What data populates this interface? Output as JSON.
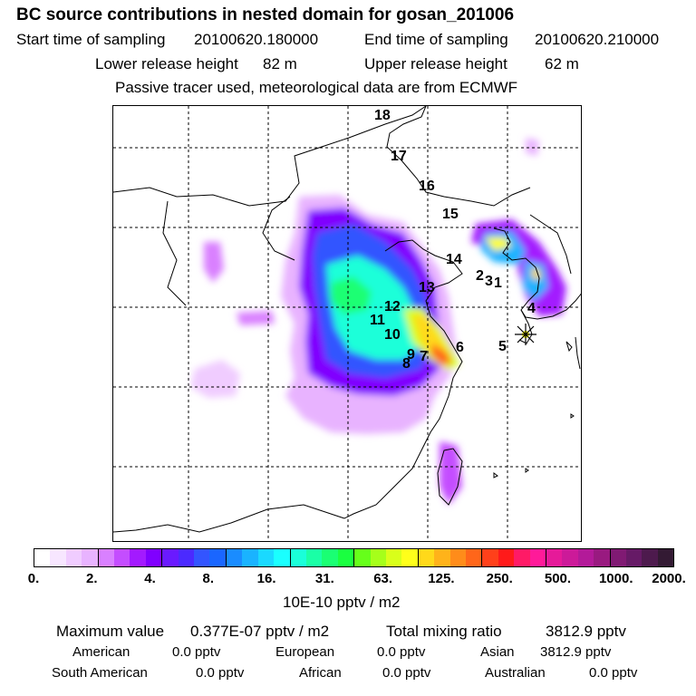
{
  "title": "BC  source contributions in nested domain for gosan_201006",
  "sampling": {
    "start_label": "Start time of sampling",
    "start_value": "20100620.180000",
    "end_label": "End time of sampling",
    "end_value": "20100620.210000"
  },
  "release": {
    "lower_label": "Lower release height",
    "lower_value": "82 m",
    "upper_label": "Upper release height",
    "upper_value": "62 m"
  },
  "note": "Passive tracer used, meteorological data are from ECMWF",
  "map": {
    "trajectory_labels": [
      "18",
      "17",
      "16",
      "15",
      "14",
      "2",
      "3",
      "1",
      "13",
      "12",
      "11",
      "10",
      "4",
      "5",
      "9",
      "7",
      "6",
      "8"
    ],
    "receptor_marker": "receptor-star-icon"
  },
  "colorbar": {
    "unit": "10E-10 pptv / m2",
    "tick_labels": [
      "0.",
      "2.",
      "4.",
      "8.",
      "16.",
      "31.",
      "63.",
      "125.",
      "250.",
      "500.",
      "1000.",
      "2000."
    ],
    "colors": [
      "#ffffff",
      "#f7e6ff",
      "#f0ccff",
      "#e8b3ff",
      "#d980ff",
      "#c44dff",
      "#a31aff",
      "#8000ff",
      "#6a1aff",
      "#4b2aff",
      "#3355ff",
      "#1a66ff",
      "#1a8cff",
      "#1ab3ff",
      "#1ad9ff",
      "#1affff",
      "#1affd9",
      "#1affa6",
      "#1aff73",
      "#1aff40",
      "#66ff1a",
      "#a6ff1a",
      "#d9ff1a",
      "#ffff1a",
      "#ffd91a",
      "#ffb31a",
      "#ff8c1a",
      "#ff661a",
      "#ff401a",
      "#ff1a1a",
      "#ff1a66",
      "#ff1a99",
      "#e61a99",
      "#cc1a99",
      "#b31a99",
      "#991a80",
      "#801a73",
      "#661a66",
      "#4d1a4d",
      "#331a33"
    ]
  },
  "summary": {
    "max_label": "Maximum value",
    "max_value": "0.377E-07 pptv / m2",
    "total_label": "Total mixing ratio",
    "total_value": "3812.9 pptv",
    "regions": [
      {
        "name": "American",
        "value": "0.0 pptv"
      },
      {
        "name": "European",
        "value": "0.0 pptv"
      },
      {
        "name": "Asian",
        "value": "3812.9 pptv"
      },
      {
        "name": "South American",
        "value": "0.0 pptv"
      },
      {
        "name": "African",
        "value": "0.0 pptv"
      },
      {
        "name": "Australian",
        "value": "0.0 pptv"
      }
    ]
  }
}
